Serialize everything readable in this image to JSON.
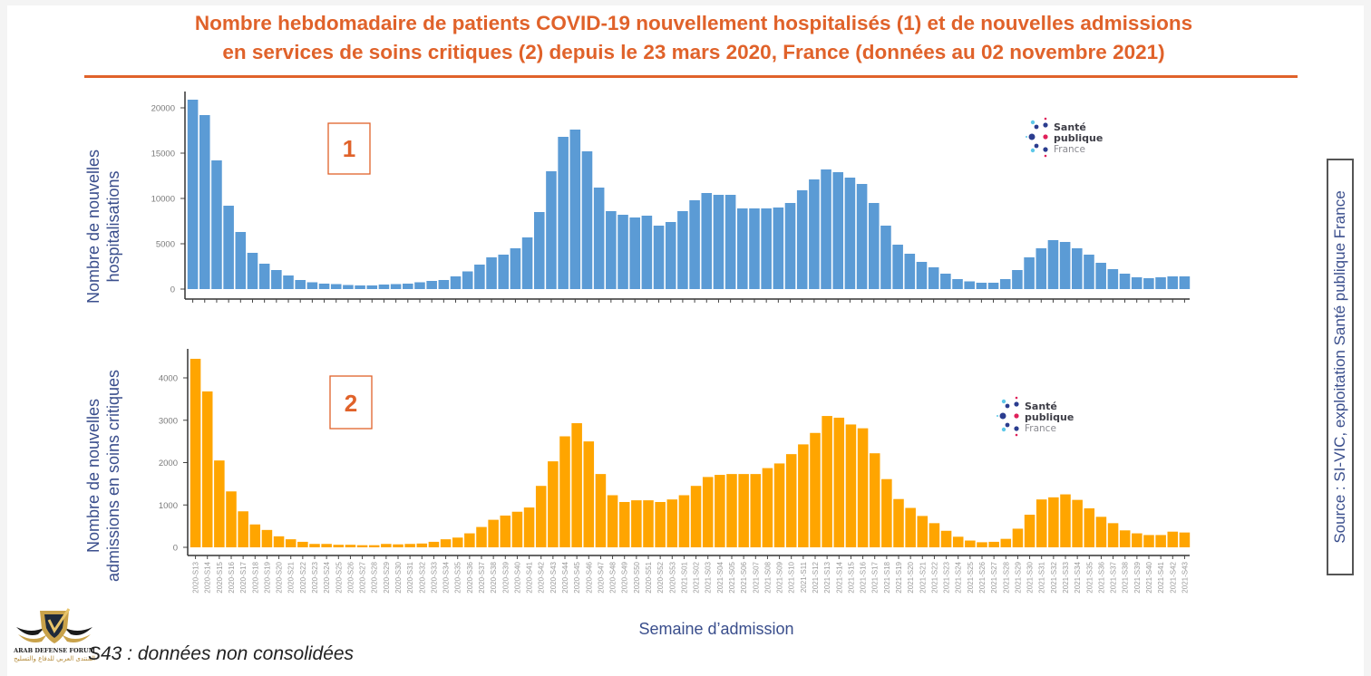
{
  "title": {
    "line1": "Nombre hebdomadaire de patients COVID-19 nouvellement hospitalisés (1) et de nouvelles admissions",
    "line2": "en services de soins critiques (2) depuis le 23 mars 2020, France (données au 02 novembre 2021)"
  },
  "source": "Source : SI-VIC, exploitation Santé publique France",
  "note": "S43 : données non consolidées",
  "logo": {
    "line1": "Santé",
    "line2": "publique",
    "line3": "France"
  },
  "watermark": {
    "line1": "ARAB DEFENSE FORUM",
    "line2": "المنتدى العربي للدفاع والتسليح",
    "badge": "DA"
  },
  "colors": {
    "accent": "#e0622a",
    "series1": "#5b9bd5",
    "series2": "#ffa500",
    "axis_text": "#3a4e8c"
  },
  "chart_data": [
    {
      "type": "bar",
      "panel_label": "1",
      "title": "",
      "xlabel": "",
      "ylabel": "Nombre de nouvelles hospitalisations",
      "ylabel_lines": [
        "Nombre de nouvelles",
        "hospitalisations"
      ],
      "ylim": [
        0,
        21000
      ],
      "yticks": [
        0,
        5000,
        10000,
        15000,
        20000
      ],
      "grid": false,
      "legend": "none",
      "series": [
        {
          "name": "Nouvelles hospitalisations",
          "values": [
            20900,
            19200,
            14200,
            9200,
            6300,
            4000,
            2800,
            2100,
            1500,
            1000,
            750,
            600,
            550,
            450,
            400,
            400,
            500,
            550,
            600,
            750,
            900,
            1000,
            1400,
            1950,
            2700,
            3500,
            3800,
            4500,
            5700,
            8500,
            13000,
            16800,
            17600,
            15200,
            11200,
            8600,
            8200,
            7900,
            8100,
            7000,
            7400,
            8600,
            9800,
            10600,
            10400,
            10400,
            8900,
            8900,
            8900,
            9000,
            9500,
            10900,
            12100,
            13200,
            12900,
            12300,
            11600,
            9500,
            7000,
            4900,
            3900,
            3000,
            2400,
            1700,
            1100,
            850,
            700,
            700,
            1100,
            2100,
            3500,
            4500,
            5400,
            5200,
            4500,
            3800,
            2900,
            2200,
            1700,
            1300,
            1200,
            1300,
            1400,
            1400
          ]
        }
      ]
    },
    {
      "type": "bar",
      "panel_label": "2",
      "title": "",
      "xlabel": "Semaine d’admission",
      "ylabel": "Nombre de nouvelles admissions en soins critiques",
      "ylabel_lines": [
        "Nombre de nouvelles",
        "admissions en soins critiques"
      ],
      "ylim": [
        0,
        4600
      ],
      "yticks": [
        0,
        1000,
        2000,
        3000,
        4000
      ],
      "grid": false,
      "legend": "none",
      "series": [
        {
          "name": "Nouvelles admissions en soins critiques",
          "values": [
            4450,
            3680,
            2050,
            1320,
            850,
            540,
            410,
            260,
            190,
            130,
            80,
            80,
            60,
            60,
            50,
            50,
            80,
            70,
            80,
            90,
            130,
            190,
            230,
            330,
            480,
            650,
            750,
            840,
            940,
            1450,
            2030,
            2620,
            2930,
            2500,
            1730,
            1230,
            1070,
            1110,
            1110,
            1070,
            1130,
            1230,
            1450,
            1660,
            1710,
            1730,
            1730,
            1730,
            1870,
            1980,
            2200,
            2430,
            2700,
            3100,
            3060,
            2900,
            2810,
            2220,
            1610,
            1140,
            930,
            740,
            570,
            390,
            250,
            160,
            120,
            130,
            200,
            440,
            770,
            1130,
            1180,
            1250,
            1120,
            920,
            720,
            570,
            400,
            330,
            290,
            290,
            370,
            350
          ]
        }
      ]
    }
  ],
  "categories": [
    "2020-S13",
    "2020-S14",
    "2020-S15",
    "2020-S16",
    "2020-S17",
    "2020-S18",
    "2020-S19",
    "2020-S20",
    "2020-S21",
    "2020-S22",
    "2020-S23",
    "2020-S24",
    "2020-S25",
    "2020-S26",
    "2020-S27",
    "2020-S28",
    "2020-S29",
    "2020-S30",
    "2020-S31",
    "2020-S32",
    "2020-S33",
    "2020-S34",
    "2020-S35",
    "2020-S36",
    "2020-S37",
    "2020-S38",
    "2020-S39",
    "2020-S40",
    "2020-S41",
    "2020-S42",
    "2020-S43",
    "2020-S44",
    "2020-S45",
    "2020-S46",
    "2020-S47",
    "2020-S48",
    "2020-S49",
    "2020-S50",
    "2020-S51",
    "2020-S52",
    "2020-S53",
    "2021-S01",
    "2021-S02",
    "2021-S03",
    "2021-S04",
    "2021-S05",
    "2021-S06",
    "2021-S07",
    "2021-S08",
    "2021-S09",
    "2021-S10",
    "2021-S11",
    "2021-S12",
    "2021-S13",
    "2021-S14",
    "2021-S15",
    "2021-S16",
    "2021-S17",
    "2021-S18",
    "2021-S19",
    "2021-S20",
    "2021-S21",
    "2021-S22",
    "2021-S23",
    "2021-S24",
    "2021-S25",
    "2021-S26",
    "2021-S27",
    "2021-S28",
    "2021-S29",
    "2021-S30",
    "2021-S31",
    "2021-S32",
    "2021-S33",
    "2021-S34",
    "2021-S35",
    "2021-S36",
    "2021-S37",
    "2021-S38",
    "2021-S39",
    "2021-S40",
    "2021-S41",
    "2021-S42",
    "2021-S43"
  ]
}
